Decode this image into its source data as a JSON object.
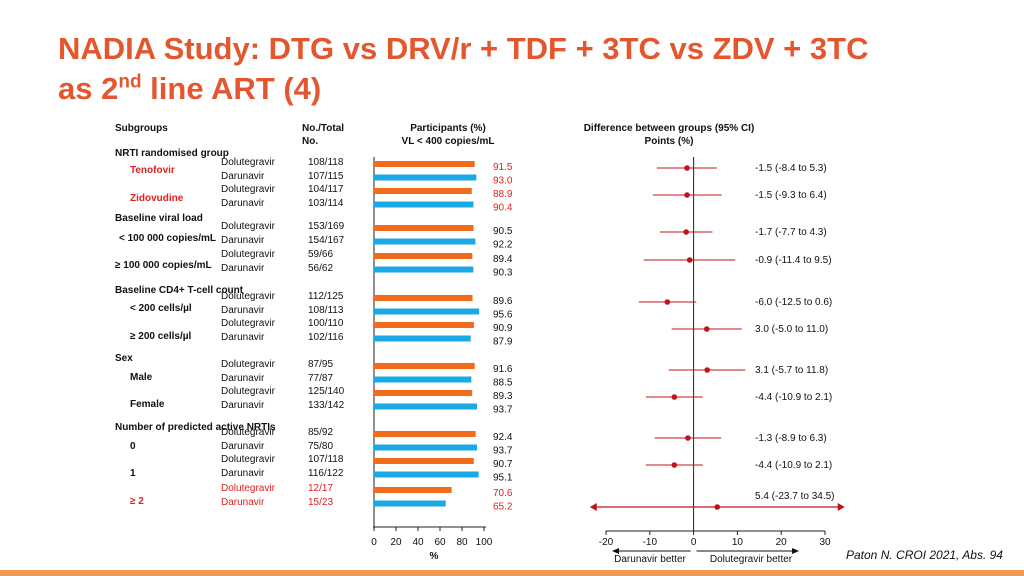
{
  "title": {
    "line1": "NADIA Study: DTG vs DRV/r + TDF + 3TC vs ZDV + 3TC",
    "line2_pre": "as 2",
    "line2_sup": "nd",
    "line2_post": " line ART (4)"
  },
  "headers": {
    "subgroups": "Subgroups",
    "no_total_1": "No./Total",
    "no_total_2": "No.",
    "participants_1": "Participants (%)",
    "participants_2": "VL < 400 copies/mL",
    "difference_1": "Difference between groups (95% CI)",
    "difference_2": "Points (%)"
  },
  "sections": {
    "nrti": "NRTI randomised group",
    "viral": "Baseline viral load",
    "cd4": "Baseline CD4+ T-cell count",
    "sex": "Sex",
    "active": "Number of predicted active NRTIs"
  },
  "subgroups": {
    "tenofovir": "Tenofovir",
    "zidovudine": "Zidovudine",
    "vl_low": "< 100 000 copies/mL",
    "vl_high": "≥ 100 000 copies/mL",
    "cd4_low": "< 200 cells/µl",
    "cd4_high": "≥ 200 cells/µl",
    "male": "Male",
    "female": "Female",
    "nrti0": "0",
    "nrti1": "1",
    "nrti2": "≥ 2"
  },
  "chart_data": [
    {
      "type": "bar",
      "title": "Participants (%) VL < 400 copies/mL",
      "xlabel": "%",
      "xlim": [
        0,
        100
      ],
      "xticks": [
        "0",
        "20",
        "40",
        "60",
        "80",
        "100"
      ],
      "series_colors": {
        "Dolutegravir": "#f26a1b",
        "Darunavir": "#1ba9e6"
      },
      "rows": [
        {
          "arm": "Dolutegravir",
          "count": "108/118",
          "value": 91.5,
          "label": "91.5"
        },
        {
          "arm": "Darunavir",
          "count": "107/115",
          "value": 93.0,
          "label": "93.0"
        },
        {
          "arm": "Dolutegravir",
          "count": "104/117",
          "value": 88.9,
          "label": "88.9"
        },
        {
          "arm": "Darunavir",
          "count": "103/114",
          "value": 90.4,
          "label": "90.4"
        },
        {
          "arm": "Dolutegravir",
          "count": "153/169",
          "value": 90.5,
          "label": "90.5"
        },
        {
          "arm": "Darunavir",
          "count": "154/167",
          "value": 92.2,
          "label": "92.2"
        },
        {
          "arm": "Dolutegravir",
          "count": "59/66",
          "value": 89.4,
          "label": "89.4"
        },
        {
          "arm": "Darunavir",
          "count": "56/62",
          "value": 90.3,
          "label": "90.3"
        },
        {
          "arm": "Dolutegravir",
          "count": "112/125",
          "value": 89.6,
          "label": "89.6"
        },
        {
          "arm": "Darunavir",
          "count": "108/113",
          "value": 95.6,
          "label": "95.6"
        },
        {
          "arm": "Dolutegravir",
          "count": "100/110",
          "value": 90.9,
          "label": "90.9"
        },
        {
          "arm": "Darunavir",
          "count": "102/116",
          "value": 87.9,
          "label": "87.9"
        },
        {
          "arm": "Dolutegravir",
          "count": "87/95",
          "value": 91.6,
          "label": "91.6"
        },
        {
          "arm": "Darunavir",
          "count": "77/87",
          "value": 88.5,
          "label": "88.5"
        },
        {
          "arm": "Dolutegravir",
          "count": "125/140",
          "value": 89.3,
          "label": "89.3"
        },
        {
          "arm": "Darunavir",
          "count": "133/142",
          "value": 93.7,
          "label": "93.7"
        },
        {
          "arm": "Dolutegravir",
          "count": "85/92",
          "value": 92.4,
          "label": "92.4"
        },
        {
          "arm": "Darunavir",
          "count": "75/80",
          "value": 93.7,
          "label": "93.7"
        },
        {
          "arm": "Dolutegravir",
          "count": "107/118",
          "value": 90.7,
          "label": "90.7"
        },
        {
          "arm": "Darunavir",
          "count": "116/122",
          "value": 95.1,
          "label": "95.1"
        },
        {
          "arm": "Dolutegravir",
          "count": "12/17",
          "value": 70.6,
          "label": "70.6"
        },
        {
          "arm": "Darunavir",
          "count": "15/23",
          "value": 65.2,
          "label": "65.2"
        }
      ]
    },
    {
      "type": "scatter",
      "title": "Difference between groups (95% CI) Points (%)",
      "xlim": [
        -20,
        30
      ],
      "xticks": [
        "-20",
        "-10",
        "0",
        "10",
        "20",
        "30"
      ],
      "left_arrow_label": "Darunavir better",
      "right_arrow_label": "Dolutegravir better",
      "point_color": "#c0141c",
      "points": [
        {
          "estimate": -1.5,
          "lo": -8.4,
          "hi": 5.3,
          "label": "-1.5 (-8.4 to 5.3)"
        },
        {
          "estimate": -1.5,
          "lo": -9.3,
          "hi": 6.4,
          "label": "-1.5 (-9.3 to 6.4)"
        },
        {
          "estimate": -1.7,
          "lo": -7.7,
          "hi": 4.3,
          "label": "-1.7 (-7.7 to 4.3)"
        },
        {
          "estimate": -0.9,
          "lo": -11.4,
          "hi": 9.5,
          "label": "-0.9 (-11.4 to 9.5)"
        },
        {
          "estimate": -6.0,
          "lo": -12.5,
          "hi": 0.6,
          "label": "-6.0 (-12.5 to 0.6)"
        },
        {
          "estimate": 3.0,
          "lo": -5.0,
          "hi": 11.0,
          "label": "3.0 (-5.0 to 11.0)"
        },
        {
          "estimate": 3.1,
          "lo": -5.7,
          "hi": 11.8,
          "label": "3.1 (-5.7 to 11.8)"
        },
        {
          "estimate": -4.4,
          "lo": -10.9,
          "hi": 2.1,
          "label": "-4.4 (-10.9 to 2.1)"
        },
        {
          "estimate": -1.3,
          "lo": -8.9,
          "hi": 6.3,
          "label": "-1.3 (-8.9 to 6.3)"
        },
        {
          "estimate": -4.4,
          "lo": -10.9,
          "hi": 2.1,
          "label": "-4.4 (-10.9 to 2.1)"
        },
        {
          "estimate": 5.4,
          "lo": -23.7,
          "hi": 34.5,
          "label": "5.4 (-23.7 to 34.5)"
        }
      ]
    }
  ],
  "citation": "Paton N. CROI 2021, Abs. 94"
}
